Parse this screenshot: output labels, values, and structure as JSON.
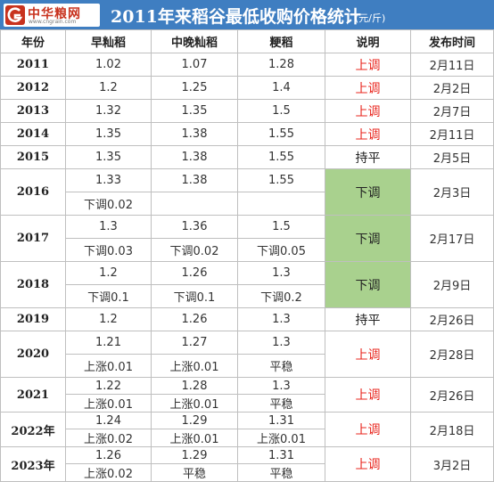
{
  "header": {
    "logo_text": "中华粮网",
    "logo_url": "www.cngrain.com",
    "title": "2011年来稻谷最低收购价格统计",
    "unit": "(元/斤)"
  },
  "columns": [
    "年份",
    "早籼稻",
    "中晚籼稻",
    "粳稻",
    "说明",
    "发布时间"
  ],
  "colors": {
    "header_bg": "#3f7ec1",
    "red": "#e8251d",
    "green_cell": "#a9d18e"
  },
  "rows": [
    {
      "year": "2011",
      "early": "1.02",
      "mid": "1.07",
      "japonica": "1.28",
      "note": "上调",
      "date": "2月11日"
    },
    {
      "year": "2012",
      "early": "1.2",
      "mid": "1.25",
      "japonica": "1.4",
      "note": "上调",
      "date": "2月2日"
    },
    {
      "year": "2013",
      "early": "1.32",
      "mid": "1.35",
      "japonica": "1.5",
      "note": "上调",
      "date": "2月7日"
    },
    {
      "year": "2014",
      "early": "1.35",
      "mid": "1.38",
      "japonica": "1.55",
      "note": "上调",
      "date": "2月11日"
    },
    {
      "year": "2015",
      "early": "1.35",
      "mid": "1.38",
      "japonica": "1.55",
      "note": "持平",
      "date": "2月5日"
    },
    {
      "year": "2016",
      "early": "1.33",
      "mid": "1.38",
      "japonica": "1.55",
      "early_change": "下调0.02",
      "mid_change": "",
      "japonica_change": "",
      "note": "下调",
      "date": "2月3日"
    },
    {
      "year": "2017",
      "early": "1.3",
      "mid": "1.36",
      "japonica": "1.5",
      "early_change": "下调0.03",
      "mid_change": "下调0.02",
      "japonica_change": "下调0.05",
      "note": "下调",
      "date": "2月17日"
    },
    {
      "year": "2018",
      "early": "1.2",
      "mid": "1.26",
      "japonica": "1.3",
      "early_change": "下调0.1",
      "mid_change": "下调0.1",
      "japonica_change": "下调0.2",
      "note": "下调",
      "date": "2月9日"
    },
    {
      "year": "2019",
      "early": "1.2",
      "mid": "1.26",
      "japonica": "1.3",
      "note": "持平",
      "date": "2月26日"
    },
    {
      "year": "2020",
      "early": "1.21",
      "mid": "1.27",
      "japonica": "1.3",
      "early_change": "上涨0.01",
      "mid_change": "上涨0.01",
      "japonica_change": "平稳",
      "note": "上调",
      "date": "2月28日"
    },
    {
      "year": "2021",
      "early": "1.22",
      "mid": "1.28",
      "japonica": "1.3",
      "early_change": "上涨0.01",
      "mid_change": "上涨0.01",
      "japonica_change": "平稳",
      "note": "上调",
      "date": "2月26日"
    },
    {
      "year": "2022年",
      "early": "1.24",
      "mid": "1.29",
      "japonica": "1.31",
      "early_change": "上涨0.02",
      "mid_change": "上涨0.01",
      "japonica_change": "上涨0.01",
      "note": "上调",
      "date": "2月18日"
    },
    {
      "year": "2023年",
      "early": "1.26",
      "mid": "1.29",
      "japonica": "1.31",
      "early_change": "上涨0.02",
      "mid_change": "平稳",
      "japonica_change": "平稳",
      "note": "上调",
      "date": "3月2日"
    }
  ]
}
